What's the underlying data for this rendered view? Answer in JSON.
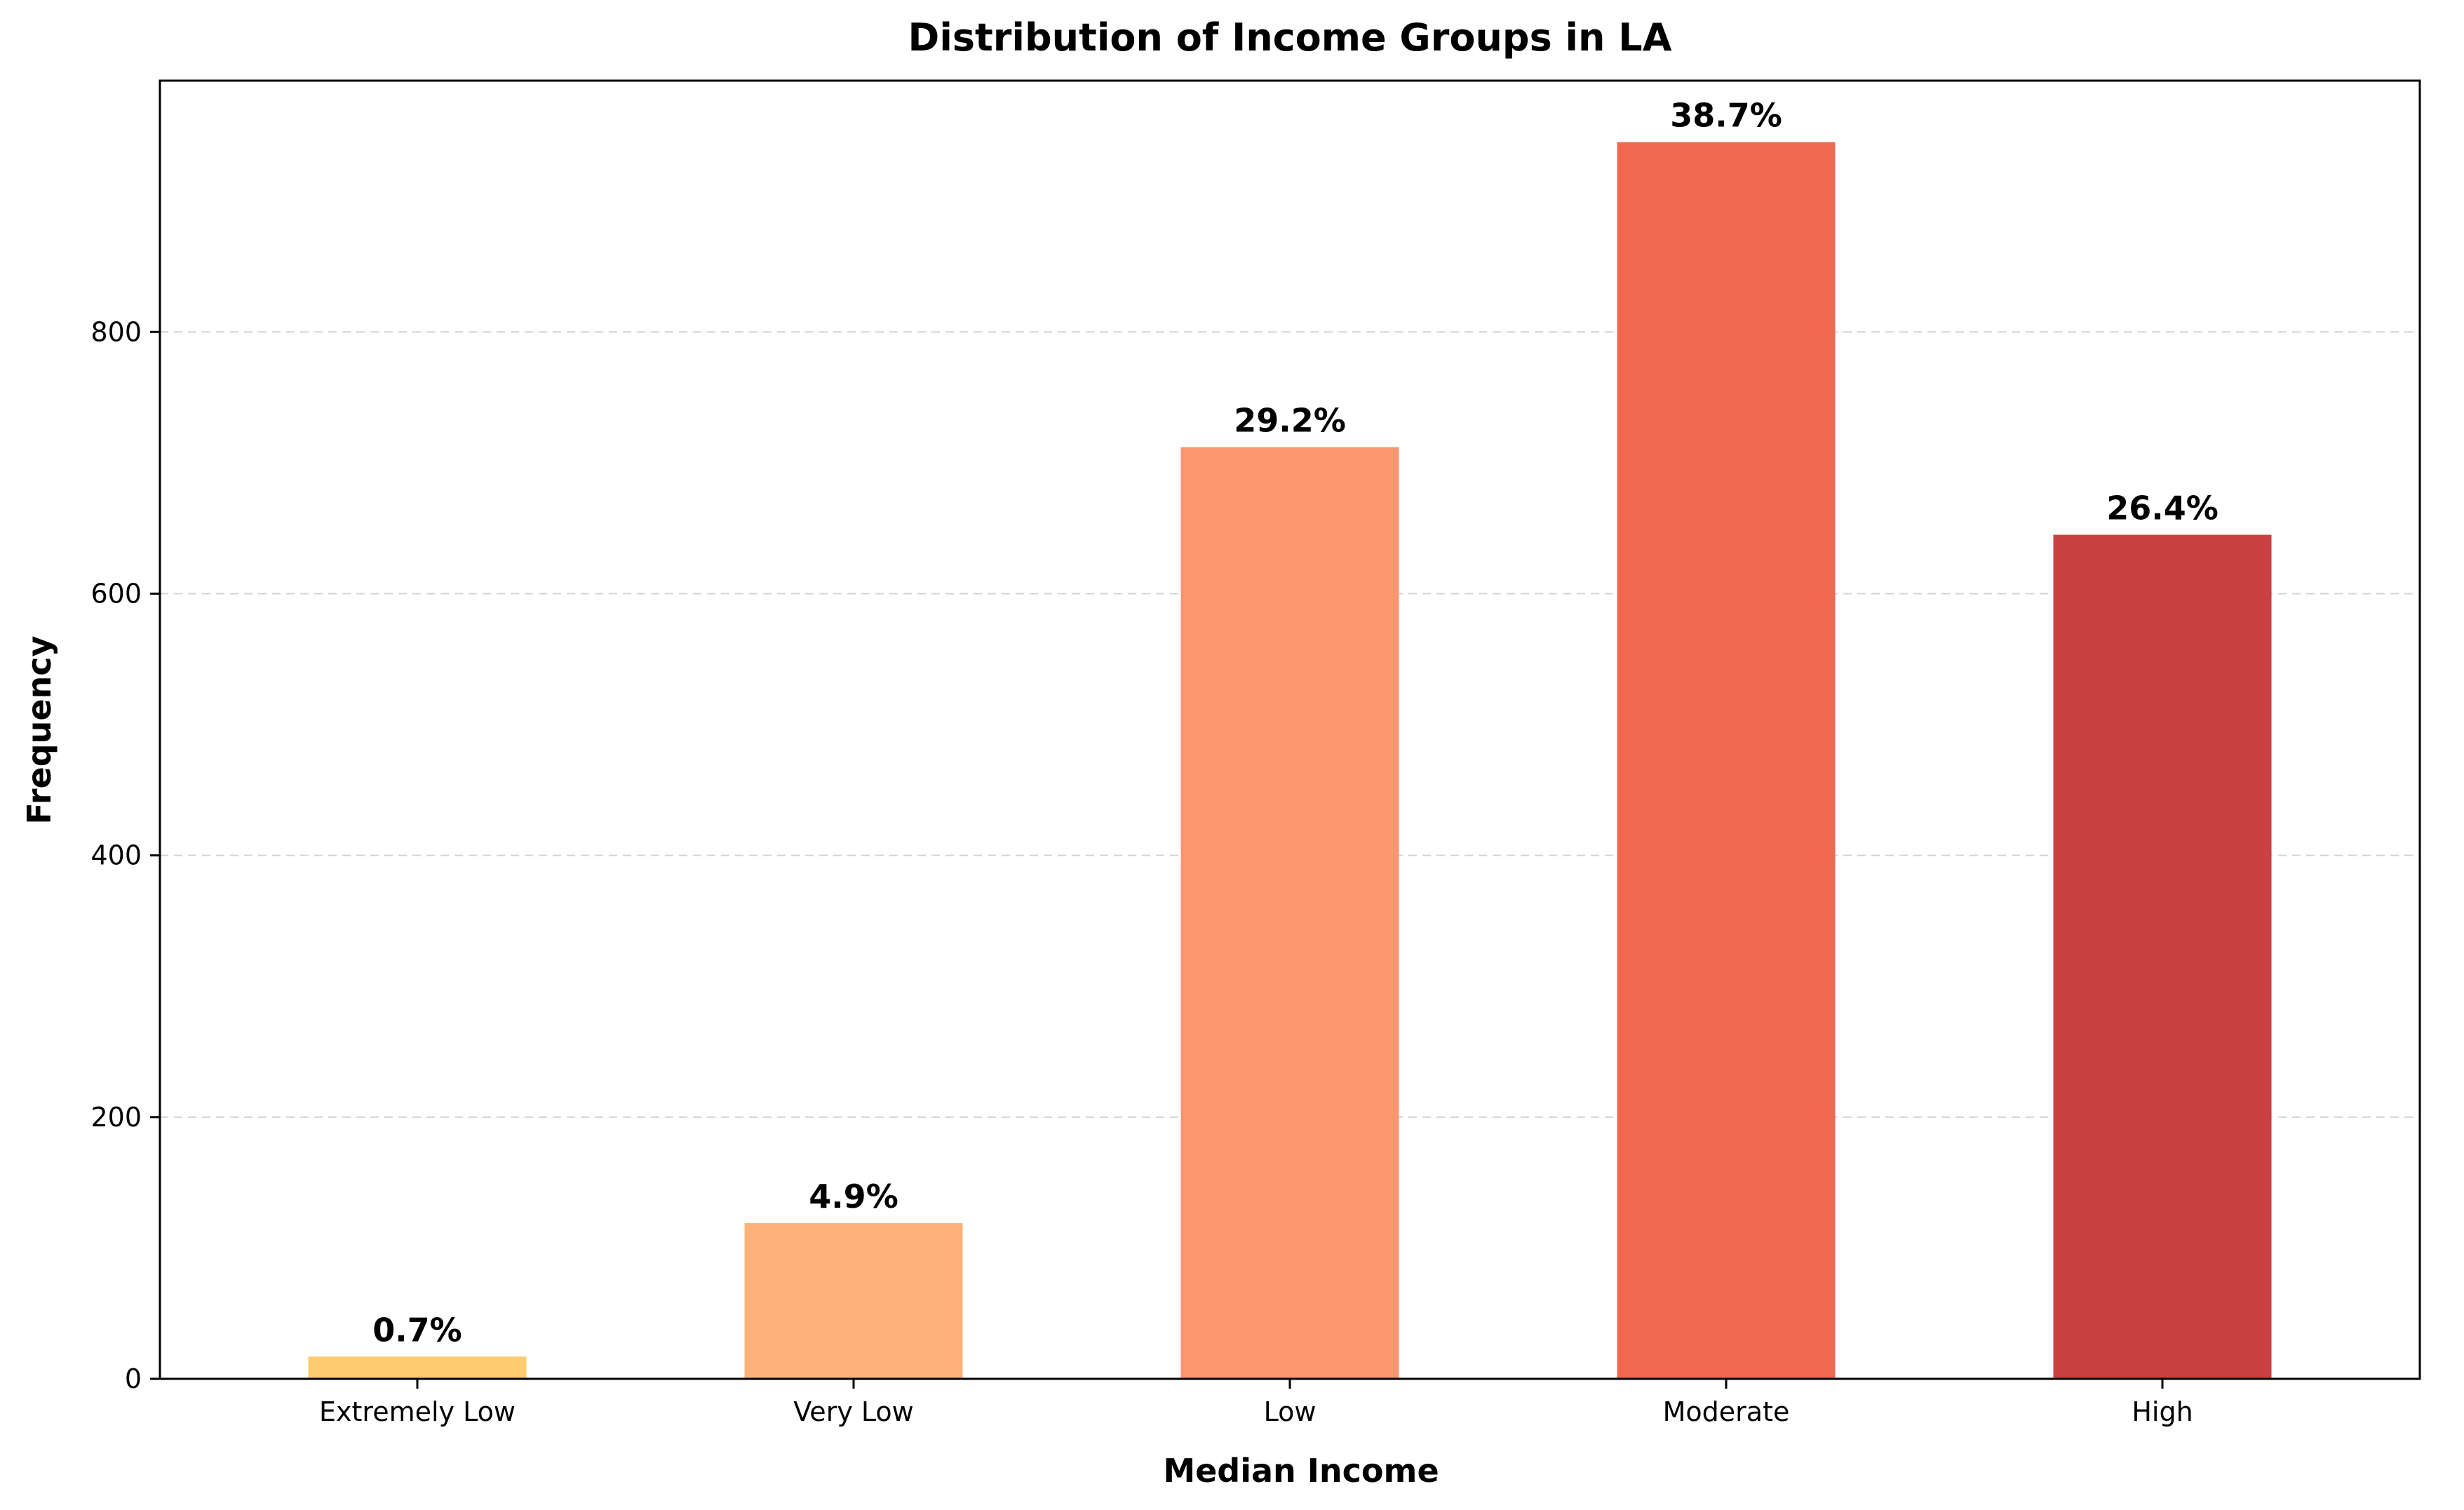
{
  "chart_data": {
    "type": "bar",
    "title": "Distribution of Income Groups in LA",
    "xlabel": "Median Income",
    "ylabel": "Frequency",
    "categories": [
      "Extremely Low",
      "Very Low",
      "Low",
      "Moderate",
      "High"
    ],
    "values": [
      17,
      119,
      712,
      945,
      645
    ],
    "bar_labels": [
      "0.7%",
      "4.9%",
      "29.2%",
      "38.7%",
      "26.4%"
    ],
    "colors": [
      "#fecc6e",
      "#feb17b",
      "#fe9571",
      "#f16851",
      "#cb4040"
    ],
    "y_ticks": [
      0,
      200,
      400,
      600,
      800
    ],
    "ylim": [
      0,
      992
    ],
    "grid": "horizontal-dashed",
    "legend": "none"
  }
}
